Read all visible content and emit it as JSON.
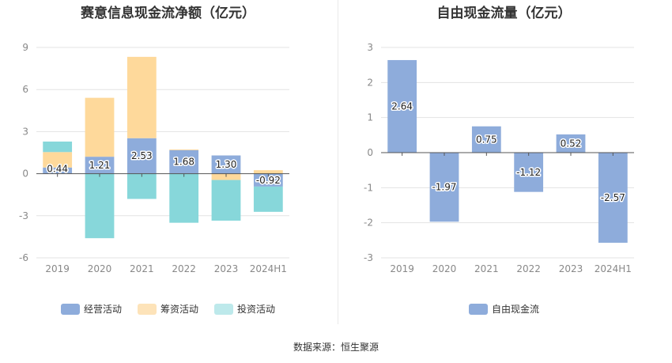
{
  "source_label": "数据来源：恒生聚源",
  "chart_data": [
    {
      "id": "left",
      "type": "bar",
      "stacked": true,
      "title": "赛意信息现金流净额（亿元）",
      "categories": [
        "2019",
        "2020",
        "2021",
        "2022",
        "2023",
        "2024H1"
      ],
      "yticks": [
        9,
        6,
        3,
        0,
        -3,
        -6
      ],
      "ylim": [
        -6,
        9
      ],
      "series": [
        {
          "name": "经营活动",
          "color": "#8eacdb",
          "values": [
            0.44,
            1.21,
            2.53,
            1.68,
            1.3,
            -0.92
          ],
          "labels": [
            "0.44",
            "1.21",
            "2.53",
            "1.68",
            "1.30",
            "-0.92"
          ]
        },
        {
          "name": "筹资活动",
          "color": "#fed99b",
          "values": [
            1.1,
            4.2,
            5.8,
            0.05,
            -0.45,
            0.25
          ]
        },
        {
          "name": "投资活动",
          "color": "#87d7da",
          "values": [
            0.75,
            -4.6,
            -1.8,
            -3.5,
            -2.9,
            -1.8
          ]
        }
      ]
    },
    {
      "id": "right",
      "type": "bar",
      "stacked": false,
      "title": "自由现金流量（亿元）",
      "categories": [
        "2019",
        "2020",
        "2021",
        "2022",
        "2023",
        "2024H1"
      ],
      "yticks": [
        3,
        2,
        1,
        0,
        -1,
        -2,
        -3
      ],
      "ylim": [
        -3,
        3
      ],
      "series": [
        {
          "name": "自由现金流",
          "color": "#8eacdb",
          "values": [
            2.64,
            -1.97,
            0.75,
            -1.12,
            0.52,
            -2.57
          ],
          "labels": [
            "2.64",
            "-1.97",
            "0.75",
            "-1.12",
            "0.52",
            "-2.57"
          ]
        }
      ]
    }
  ]
}
